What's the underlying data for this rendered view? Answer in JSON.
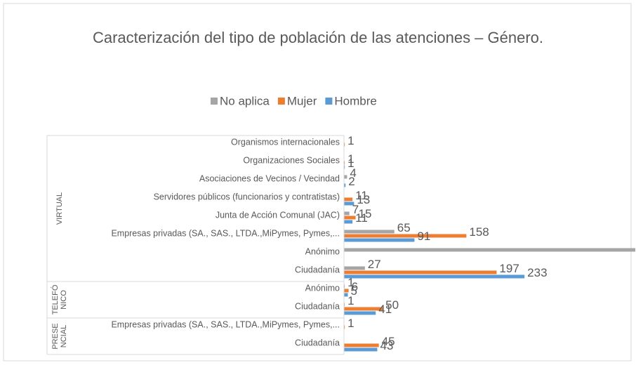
{
  "chart_data": {
    "type": "bar",
    "orientation": "horizontal",
    "title": "Caracterización del tipo de población de las atenciones – Género.",
    "groups": [
      {
        "label": "VIRTUAL",
        "categories": [
          "Organismos internacionales",
          "Organizaciones Sociales",
          "Asociaciones de Vecinos / Vecindad",
          "Servidores públicos (funcionarios y contratistas)",
          "Junta de Acción Comunal (JAC)",
          "Empresas privadas (SA., SAS., LTDA.,MiPymes, Pymes,...",
          "Anónimo",
          "Ciudadanía"
        ]
      },
      {
        "label": "TELEFÓNICO",
        "categories": [
          "Anónimo",
          "Ciudadanía"
        ]
      },
      {
        "label": "PRESENCIAL",
        "categories": [
          "Empresas privadas (SA., SAS., LTDA.,MiPymes, Pymes,...",
          "Ciudadanía"
        ]
      }
    ],
    "series": [
      {
        "name": "No aplica",
        "color": "#a5a5a5",
        "values": [
          null,
          null,
          4,
          null,
          7,
          65,
          376,
          27,
          1,
          1,
          null,
          null
        ]
      },
      {
        "name": "Mujer",
        "color": "#ed7d31",
        "values": [
          1,
          1,
          null,
          11,
          15,
          158,
          null,
          197,
          6,
          50,
          1,
          45
        ]
      },
      {
        "name": "Hombre",
        "color": "#5b9bd5",
        "values": [
          null,
          1,
          2,
          13,
          11,
          91,
          null,
          233,
          5,
          41,
          null,
          43
        ]
      }
    ],
    "xlim": [
      0,
      376
    ],
    "legend": "top"
  }
}
